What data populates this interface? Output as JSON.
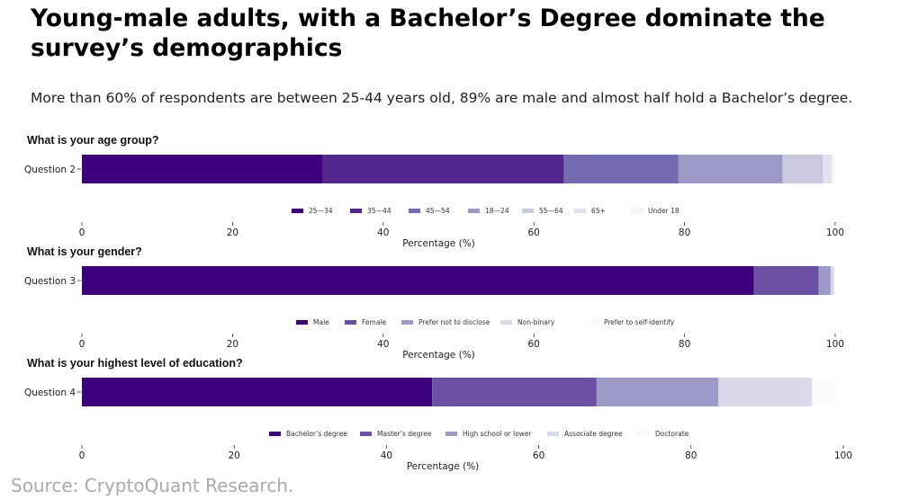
{
  "title": "Young-male adults, with a Bachelor’s Degree dominate the survey’s demographics",
  "subtitle": "More than 60% of respondents are between 25-44 years old, 89% are male and almost half hold a Bachelor’s degree.",
  "source": "Source: CryptoQuant Research.",
  "colors": {
    "c1": "#3f007d",
    "c2": "#54278f",
    "c3": "#6a51a3",
    "c4": "#807dba",
    "c5": "#9e9ac8",
    "c6": "#cbc9e2",
    "c7": "#dadaeb",
    "c8": "#efedf5",
    "c9": "#fcfbfd"
  },
  "chart_data": [
    {
      "type": "bar",
      "orientation": "horizontal-stacked",
      "title": "What is your age group?",
      "categories": [
        "Question 2"
      ],
      "xlabel": "Percentage (%)",
      "xlim": [
        0,
        100
      ],
      "xticks": [
        "0",
        "20",
        "40",
        "60",
        "80",
        "100"
      ],
      "legend_position": "bottom",
      "series": [
        {
          "name": "25—34",
          "values": [
            32
          ],
          "color": "#3f007d"
        },
        {
          "name": "35—44",
          "values": [
            32
          ],
          "color": "#54278f"
        },
        {
          "name": "45—54",
          "values": [
            15.2
          ],
          "color": "#756bb1"
        },
        {
          "name": "18—24",
          "values": [
            13.8
          ],
          "color": "#9e9ac8"
        },
        {
          "name": "55—64",
          "values": [
            5.4
          ],
          "color": "#cbc9e2"
        },
        {
          "name": "65+",
          "values": [
            1.2
          ],
          "color": "#e3e1ef"
        },
        {
          "name": "Under 18",
          "values": [
            0.4
          ],
          "color": "#f7f6fb"
        }
      ]
    },
    {
      "type": "bar",
      "orientation": "horizontal-stacked",
      "title": "What is your gender?",
      "categories": [
        "Question 3"
      ],
      "xlabel": "Percentage (%)",
      "xlim": [
        0,
        100
      ],
      "xticks": [
        "0",
        "20",
        "40",
        "60",
        "80",
        "100"
      ],
      "legend_position": "bottom",
      "series": [
        {
          "name": "Male",
          "values": [
            89.2
          ],
          "color": "#3f007d"
        },
        {
          "name": "Female",
          "values": [
            8.6
          ],
          "color": "#6a51a3"
        },
        {
          "name": "Prefer not to disclose",
          "values": [
            1.6
          ],
          "color": "#9e9ac8"
        },
        {
          "name": "Non-binary",
          "values": [
            0.5
          ],
          "color": "#dadaeb"
        },
        {
          "name": "Prefer to self-identify",
          "values": [
            0.1
          ],
          "color": "#fcfbfd"
        }
      ]
    },
    {
      "type": "bar",
      "orientation": "horizontal-stacked",
      "title": "What is your highest level of education?",
      "categories": [
        "Question 4"
      ],
      "xlabel": "Percentage (%)",
      "xlim": [
        0,
        100
      ],
      "xticks": [
        "0",
        "20",
        "40",
        "60",
        "80",
        "100"
      ],
      "legend_position": "bottom",
      "series": [
        {
          "name": "Bachelor’s degree",
          "values": [
            46
          ],
          "color": "#3f007d"
        },
        {
          "name": "Master’s degree",
          "values": [
            21.6
          ],
          "color": "#6a51a3"
        },
        {
          "name": "High school or lower",
          "values": [
            16
          ],
          "color": "#9e9ac8"
        },
        {
          "name": "Associate degree",
          "values": [
            12.3
          ],
          "color": "#dadaeb"
        },
        {
          "name": "Doctorate",
          "values": [
            3.3
          ],
          "color": "#fcfbfd"
        }
      ]
    }
  ]
}
